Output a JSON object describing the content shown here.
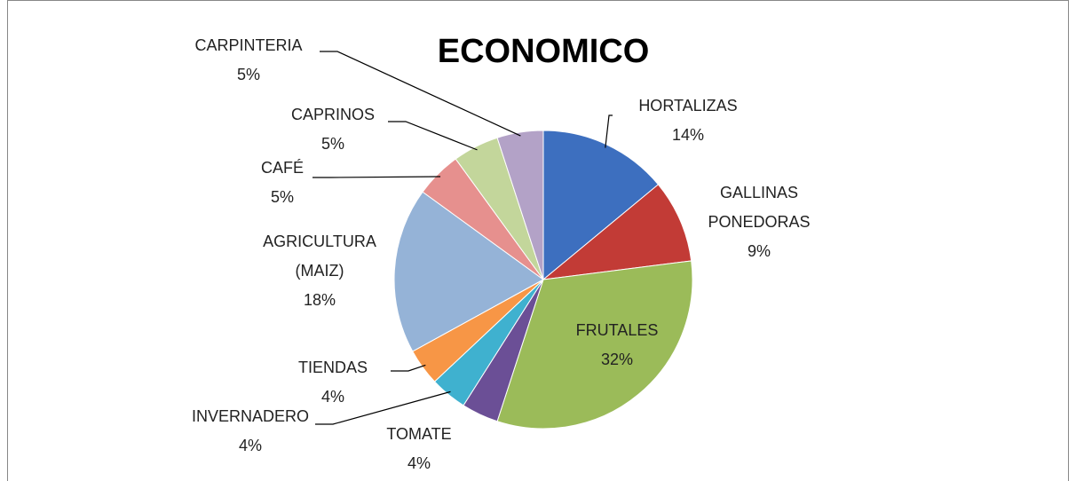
{
  "chart_data": {
    "type": "pie",
    "title": "ECONOMICO",
    "categories": [
      "HORTALIZAS",
      "GALLINAS PONEDORAS",
      "FRUTALES",
      "TOMATE",
      "INVERNADERO",
      "TIENDAS",
      "AGRICULTURA (MAIZ)",
      "CAFÉ",
      "CAPRINOS",
      "CARPINTERIA"
    ],
    "values": [
      14,
      9,
      32,
      4,
      4,
      4,
      18,
      5,
      5,
      5
    ],
    "value_labels": [
      "14%",
      "9%",
      "32%",
      "4%",
      "4%",
      "4%",
      "18%",
      "5%",
      "5%",
      "5%"
    ],
    "colors": [
      "#3d6fbf",
      "#c23b36",
      "#9bbb59",
      "#6b4f96",
      "#3fb1cf",
      "#f79646",
      "#95b3d7",
      "#e6908e",
      "#c3d69b",
      "#b3a2c7"
    ]
  }
}
